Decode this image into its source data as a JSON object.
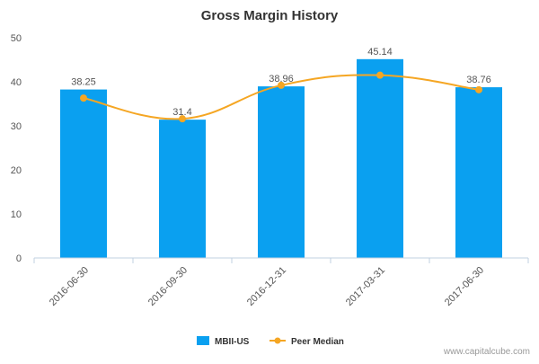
{
  "chart_data": {
    "type": "bar",
    "title": "Gross Margin History",
    "categories": [
      "2016-06-30",
      "2016-09-30",
      "2016-12-31",
      "2017-03-31",
      "2017-06-30"
    ],
    "series": [
      {
        "name": "MBII-US",
        "kind": "bar",
        "color": "#0aa0f0",
        "values": [
          38.25,
          31.4,
          38.96,
          45.14,
          38.76
        ],
        "labels": [
          "38.25",
          "31.4",
          "38.96",
          "45.14",
          "38.76"
        ]
      },
      {
        "name": "Peer Median",
        "kind": "line",
        "color": "#f5a623",
        "values": [
          36.3,
          31.6,
          39.2,
          41.5,
          38.2
        ]
      }
    ],
    "yticks": [
      "0",
      "10",
      "20",
      "30",
      "40",
      "50"
    ],
    "ylim": [
      0,
      50
    ],
    "xlabel": "",
    "ylabel": "",
    "grid": false,
    "legend": "bottom-center"
  },
  "watermark": "www.capitalcube.com"
}
